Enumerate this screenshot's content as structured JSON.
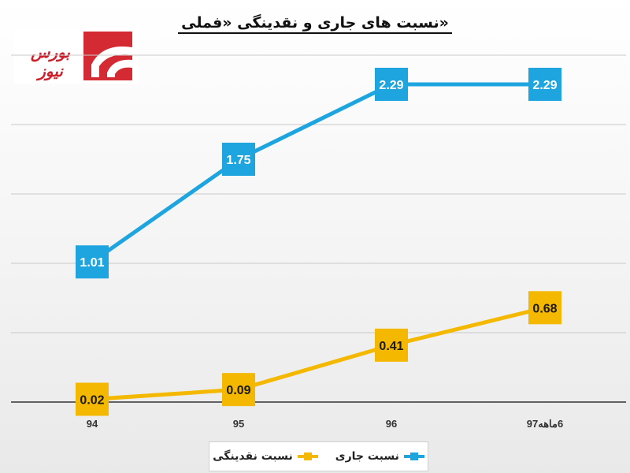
{
  "chart_data": {
    "type": "line",
    "title": "نسبت های جاری و نقدینگی «فملی»",
    "categories": [
      "94",
      "95",
      "96",
      "6ماهه97"
    ],
    "series": [
      {
        "name": "نسبت جاری",
        "values": [
          1.01,
          1.75,
          2.29,
          2.29
        ],
        "labels": [
          "1.01",
          "1.75",
          "2.29",
          "2.29"
        ],
        "color": "#1ea5e0"
      },
      {
        "name": "نسبت نقدینگی",
        "values": [
          0.02,
          0.09,
          0.41,
          0.68
        ],
        "labels": [
          "0.02",
          "0.09",
          "0.41",
          "0.68"
        ],
        "color": "#f5b800"
      }
    ],
    "ylim": [
      0,
      2.5
    ],
    "grid": true,
    "legend_position": "bottom"
  },
  "logo": {
    "text": "بورس نیوز",
    "color": "#cc1f2b"
  }
}
